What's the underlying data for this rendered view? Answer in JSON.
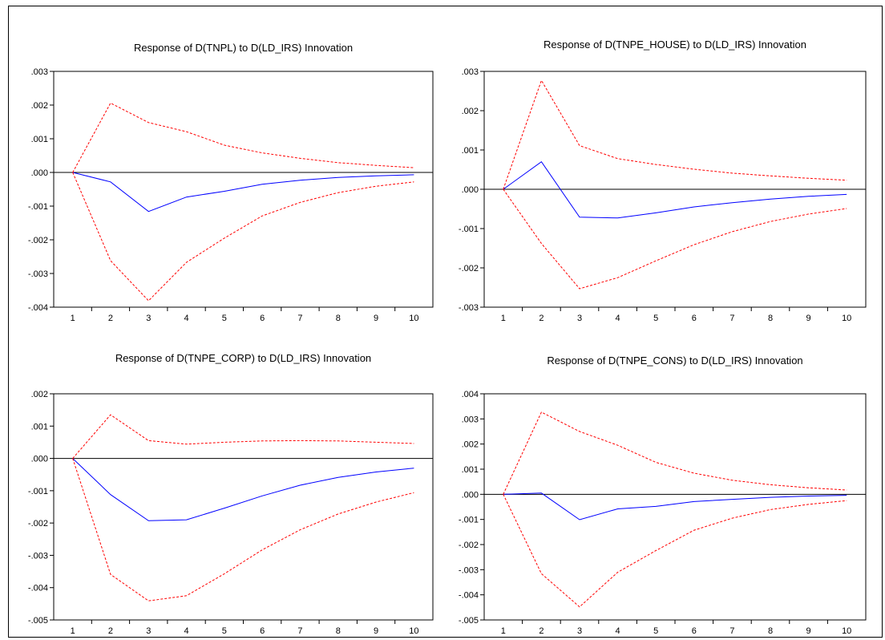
{
  "chart_data": [
    {
      "type": "line",
      "title": "Response of D(TNPL) to D(LD_IRS) Innovation",
      "x": [
        1,
        2,
        3,
        4,
        5,
        6,
        7,
        8,
        9,
        10
      ],
      "ylim": [
        -0.004,
        0.003
      ],
      "yticks": [
        0.003,
        0.002,
        0.001,
        0.0,
        -0.001,
        -0.002,
        -0.003,
        -0.004
      ],
      "ytick_labels": [
        ".003",
        ".002",
        ".001",
        ".000",
        "-.001",
        "-.002",
        "-.003",
        "-.004"
      ],
      "series": [
        {
          "role": "response",
          "color": "#0000ff",
          "dashed": false,
          "values": [
            0.0,
            -0.00028,
            -0.00116,
            -0.00073,
            -0.00056,
            -0.00035,
            -0.00023,
            -0.00015,
            -0.0001,
            -7e-05
          ]
        },
        {
          "role": "upper",
          "color": "#ff0000",
          "dashed": true,
          "values": [
            0.0,
            0.00206,
            0.00148,
            0.00121,
            0.00081,
            0.00058,
            0.00042,
            0.00029,
            0.00021,
            0.00014
          ]
        },
        {
          "role": "lower",
          "color": "#ff0000",
          "dashed": true,
          "values": [
            0.0,
            -0.00262,
            -0.00381,
            -0.00267,
            -0.00195,
            -0.00129,
            -0.00089,
            -0.0006,
            -0.00041,
            -0.00028
          ]
        }
      ]
    },
    {
      "type": "line",
      "title": "Response of D(TNPE_HOUSE) to  D(LD_IRS) Innovation",
      "x": [
        1,
        2,
        3,
        4,
        5,
        6,
        7,
        8,
        9,
        10
      ],
      "ylim": [
        -0.003,
        0.003
      ],
      "yticks": [
        0.003,
        0.002,
        0.001,
        0.0,
        -0.001,
        -0.002,
        -0.003
      ],
      "ytick_labels": [
        ".003",
        ".002",
        ".001",
        ".000",
        "-.001",
        "-.002",
        "-.003"
      ],
      "series": [
        {
          "role": "response",
          "color": "#0000ff",
          "dashed": false,
          "values": [
            0.0,
            0.0007,
            -0.00071,
            -0.00073,
            -0.0006,
            -0.00045,
            -0.00034,
            -0.00025,
            -0.00018,
            -0.00013
          ]
        },
        {
          "role": "upper",
          "color": "#ff0000",
          "dashed": true,
          "values": [
            0.0,
            0.00277,
            0.00111,
            0.00078,
            0.00063,
            0.00051,
            0.00041,
            0.00034,
            0.00028,
            0.00023
          ]
        },
        {
          "role": "lower",
          "color": "#ff0000",
          "dashed": true,
          "values": [
            0.0,
            -0.00138,
            -0.00253,
            -0.00225,
            -0.00182,
            -0.00141,
            -0.00108,
            -0.00082,
            -0.00063,
            -0.00049
          ]
        }
      ]
    },
    {
      "type": "line",
      "title": "Response of D(TNPE_CORP) to  D(LD_IRS) Innovation",
      "x": [
        1,
        2,
        3,
        4,
        5,
        6,
        7,
        8,
        9,
        10
      ],
      "ylim": [
        -0.005,
        0.002
      ],
      "yticks": [
        0.002,
        0.001,
        0.0,
        -0.001,
        -0.002,
        -0.003,
        -0.004,
        -0.005
      ],
      "ytick_labels": [
        ".002",
        ".001",
        ".000",
        "-.001",
        "-.002",
        "-.003",
        "-.004",
        "-.005"
      ],
      "series": [
        {
          "role": "response",
          "color": "#0000ff",
          "dashed": false,
          "values": [
            0.0,
            -0.00112,
            -0.00193,
            -0.0019,
            -0.00154,
            -0.00116,
            -0.00083,
            -0.00059,
            -0.00042,
            -0.0003
          ]
        },
        {
          "role": "upper",
          "color": "#ff0000",
          "dashed": true,
          "values": [
            0.0,
            0.00135,
            0.00055,
            0.00044,
            0.0005,
            0.00054,
            0.00055,
            0.00054,
            0.0005,
            0.00046
          ]
        },
        {
          "role": "lower",
          "color": "#ff0000",
          "dashed": true,
          "values": [
            0.0,
            -0.00359,
            -0.00441,
            -0.00425,
            -0.00357,
            -0.00283,
            -0.00221,
            -0.00172,
            -0.00135,
            -0.00106
          ]
        }
      ]
    },
    {
      "type": "line",
      "title": "Response of D(TNPE_CONS) to  D(LD_IRS) Innovation",
      "x": [
        1,
        2,
        3,
        4,
        5,
        6,
        7,
        8,
        9,
        10
      ],
      "ylim": [
        -0.005,
        0.004
      ],
      "yticks": [
        0.004,
        0.003,
        0.002,
        0.001,
        0.0,
        -0.001,
        -0.002,
        -0.003,
        -0.004,
        -0.005
      ],
      "ytick_labels": [
        ".004",
        ".003",
        ".002",
        ".001",
        ".000",
        "-.001",
        "-.002",
        "-.003",
        "-.004",
        "-.005"
      ],
      "series": [
        {
          "role": "response",
          "color": "#0000ff",
          "dashed": false,
          "values": [
            0.0,
            5e-05,
            -0.00101,
            -0.00058,
            -0.00048,
            -0.00029,
            -0.0002,
            -0.00012,
            -7e-05,
            -4e-05
          ]
        },
        {
          "role": "upper",
          "color": "#ff0000",
          "dashed": true,
          "values": [
            0.0,
            0.00327,
            0.0025,
            0.00195,
            0.00127,
            0.00084,
            0.00056,
            0.00038,
            0.00026,
            0.00017
          ]
        },
        {
          "role": "lower",
          "color": "#ff0000",
          "dashed": true,
          "values": [
            0.0,
            -0.00316,
            -0.00448,
            -0.0031,
            -0.00224,
            -0.00143,
            -0.00095,
            -0.00061,
            -0.0004,
            -0.00025
          ]
        }
      ]
    }
  ]
}
